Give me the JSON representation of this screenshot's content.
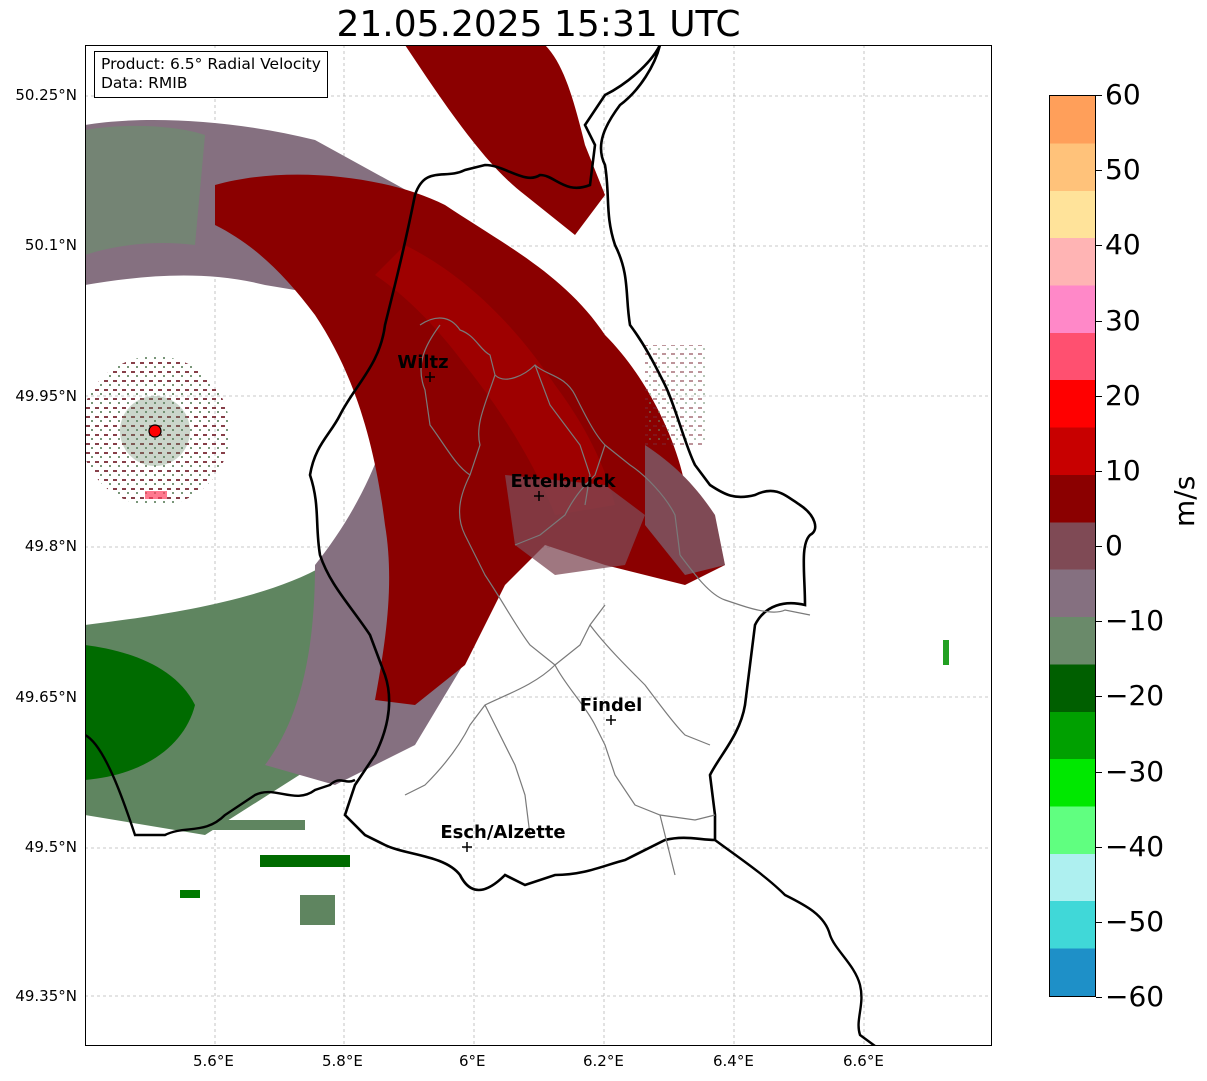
{
  "title": "21.05.2025 15:31 UTC",
  "info_box": {
    "product": "Product: 6.5° Radial Velocity",
    "source": "Data: RMIB"
  },
  "map": {
    "lat_ticks": [
      "50.25°N",
      "50.1°N",
      "49.95°N",
      "49.8°N",
      "49.65°N",
      "49.5°N",
      "49.35°N"
    ],
    "lon_ticks": [
      "5.6°E",
      "5.8°E",
      "6°E",
      "6.2°E",
      "6.4°E",
      "6.6°E"
    ],
    "cities": [
      {
        "name": "Wiltz"
      },
      {
        "name": "Ettelbruck"
      },
      {
        "name": "Findel"
      },
      {
        "name": "Esch/Alzette"
      }
    ],
    "radar_site_color": "#ff0000"
  },
  "colorbar": {
    "unit": "m/s",
    "range": [
      -60,
      60
    ],
    "ticks": [
      "60",
      "50",
      "40",
      "30",
      "20",
      "10",
      "0",
      "−10",
      "−20",
      "−30",
      "−40",
      "−50",
      "−60"
    ],
    "colors_top_to_bottom": [
      "#ff9f5a",
      "#ffc27a",
      "#ffe39a",
      "#ffb4b4",
      "#ff88c8",
      "#ff5070",
      "#ff0000",
      "#c80000",
      "#8b0000",
      "#7f4a55",
      "#857080",
      "#6a8a6a",
      "#005f00",
      "#00a000",
      "#00e800",
      "#60ff80",
      "#aef0f0",
      "#40d8d8",
      "#1e90c8"
    ]
  }
}
